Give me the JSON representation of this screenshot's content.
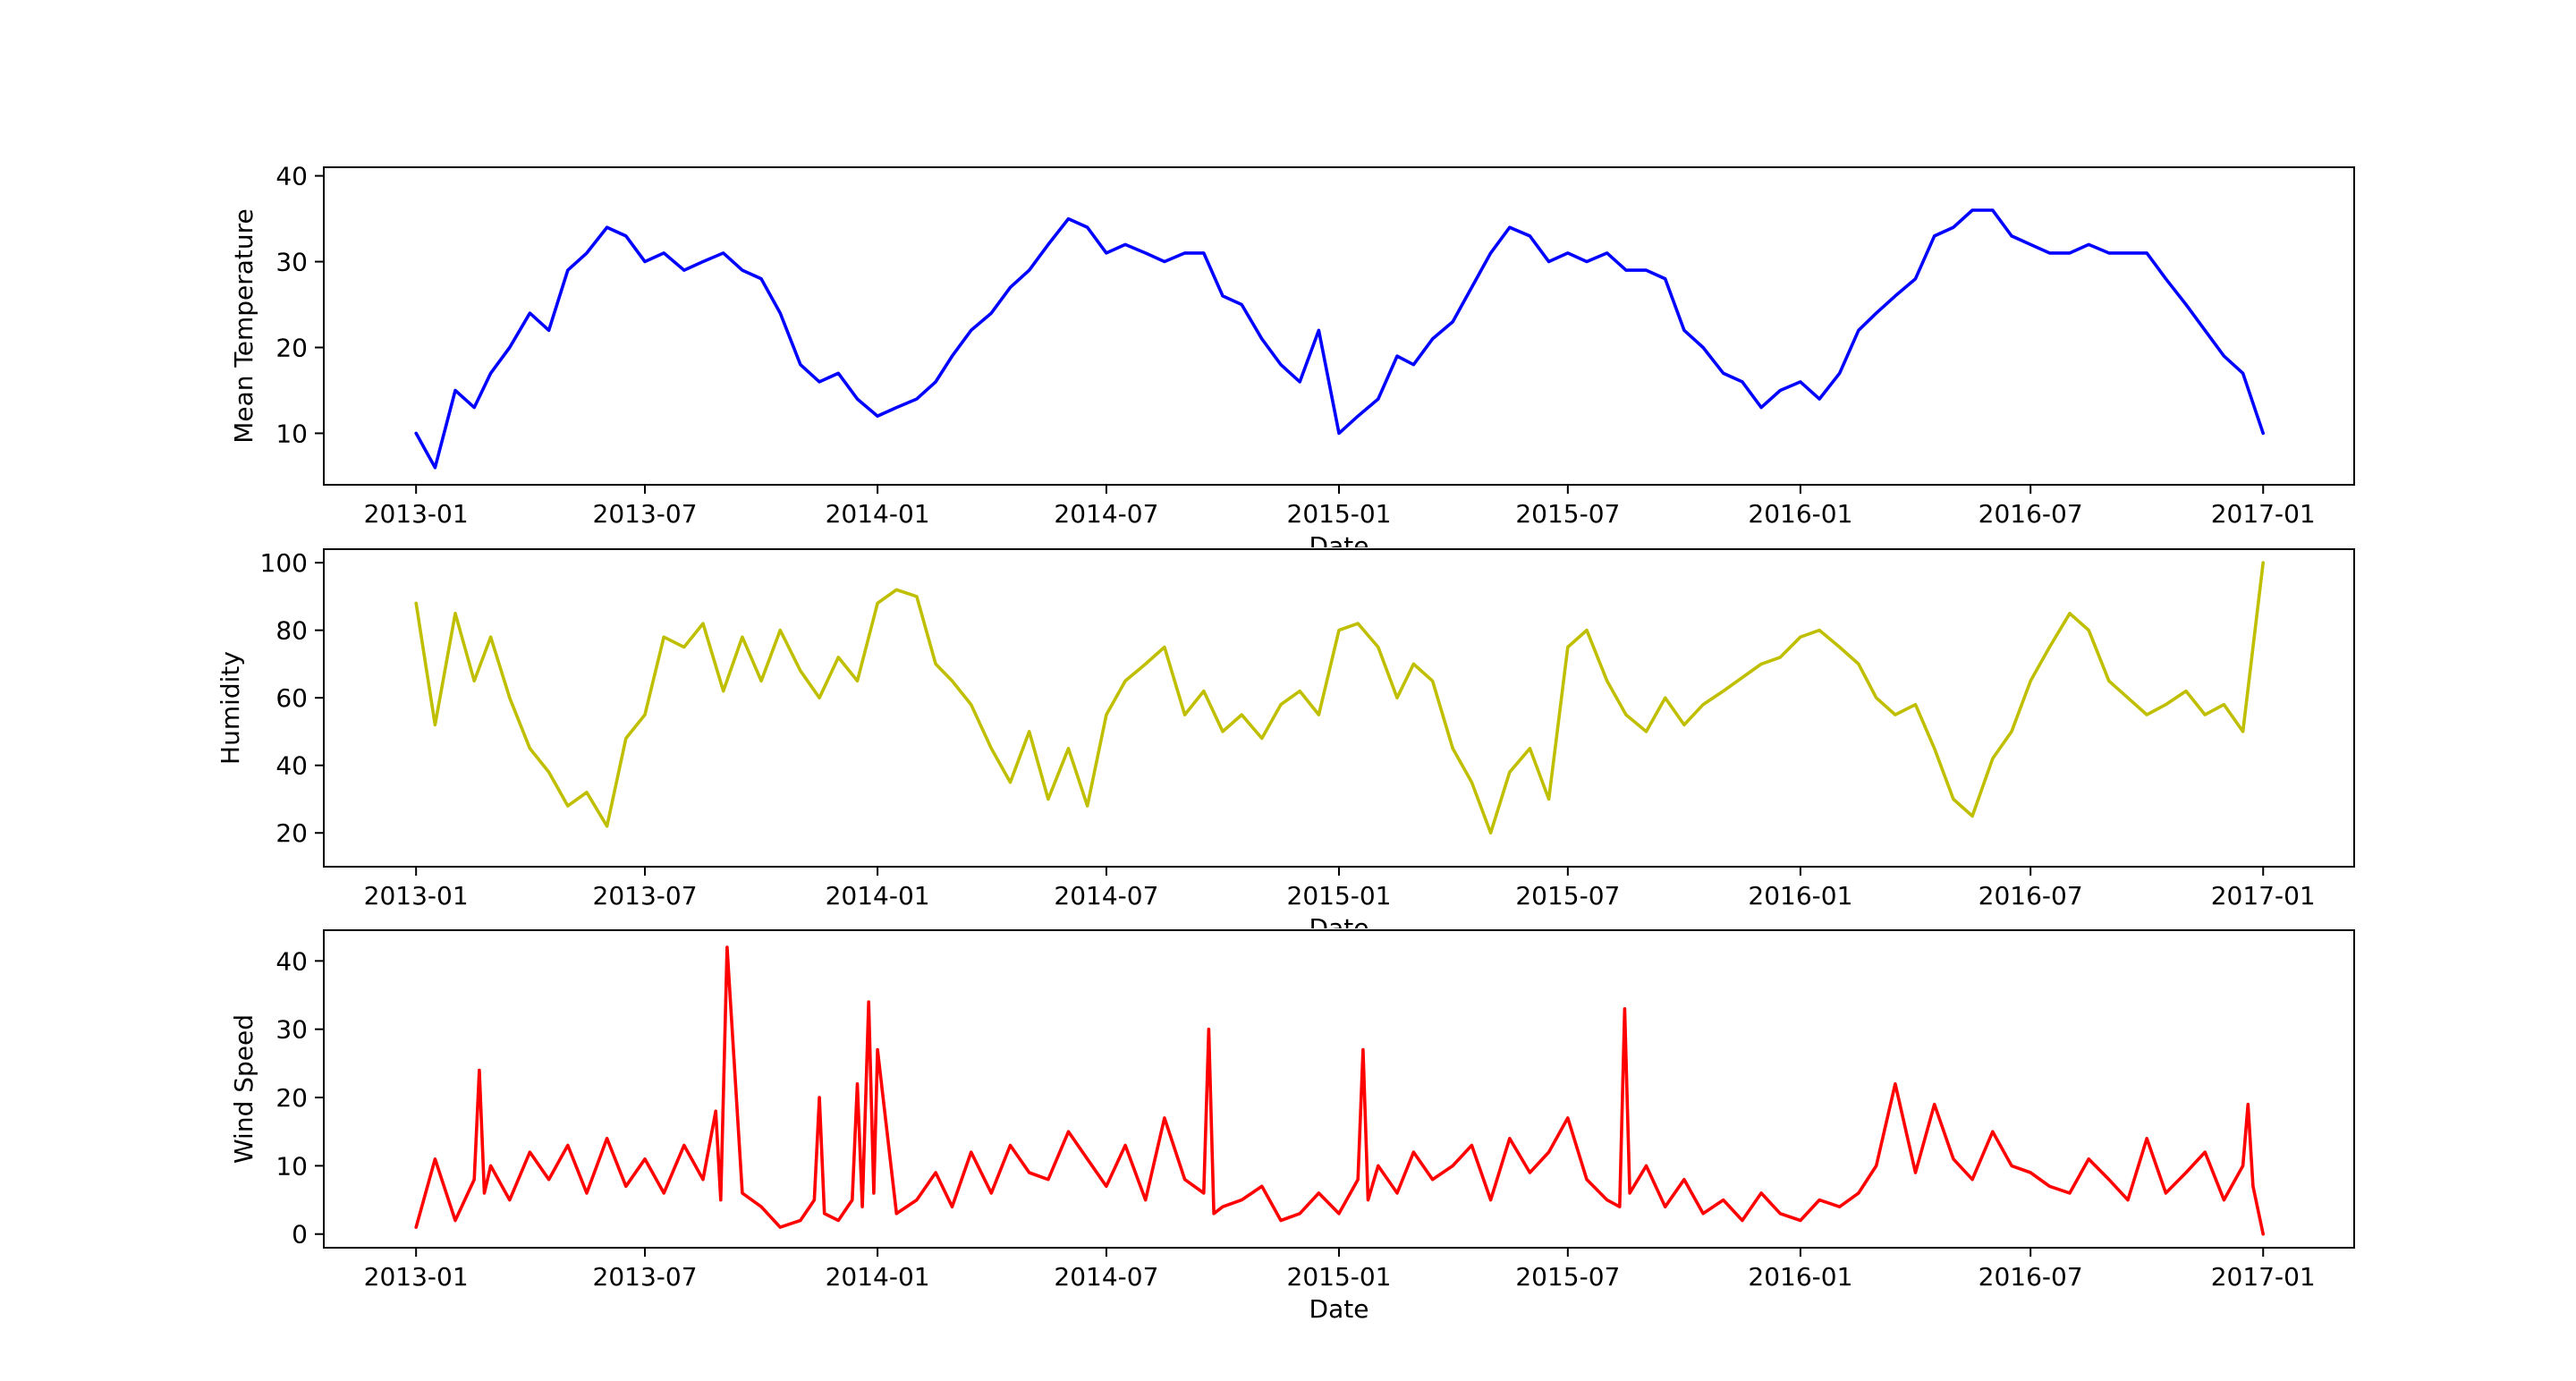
{
  "chart_data": [
    {
      "type": "line",
      "xlabel": "Date",
      "ylabel": "Mean Temperature",
      "xlim": [
        "2012-10-20",
        "2017-03-14"
      ],
      "ylim": [
        4,
        41
      ],
      "xticks": [
        "2013-01",
        "2013-07",
        "2014-01",
        "2014-07",
        "2015-01",
        "2015-07",
        "2016-01",
        "2016-07",
        "2017-01"
      ],
      "yticks": [
        10,
        20,
        30,
        40
      ],
      "color": "#0000ff",
      "series": [
        {
          "x": [
            "2013-01-01",
            "2013-01-16",
            "2013-02-01",
            "2013-02-16",
            "2013-03-01",
            "2013-03-16",
            "2013-04-01",
            "2013-04-16",
            "2013-05-01",
            "2013-05-16",
            "2013-06-01",
            "2013-06-16",
            "2013-07-01",
            "2013-07-16",
            "2013-08-01",
            "2013-08-16",
            "2013-09-01",
            "2013-09-16",
            "2013-10-01",
            "2013-10-16",
            "2013-11-01",
            "2013-11-16",
            "2013-12-01",
            "2013-12-16",
            "2014-01-01",
            "2014-01-16",
            "2014-02-01",
            "2014-02-16",
            "2014-03-01",
            "2014-03-16",
            "2014-04-01",
            "2014-04-16",
            "2014-05-01",
            "2014-05-16",
            "2014-06-01",
            "2014-06-16",
            "2014-07-01",
            "2014-07-16",
            "2014-08-01",
            "2014-08-16",
            "2014-09-01",
            "2014-09-16",
            "2014-10-01",
            "2014-10-16",
            "2014-11-01",
            "2014-11-16",
            "2014-12-01",
            "2014-12-16",
            "2015-01-01",
            "2015-01-16",
            "2015-02-01",
            "2015-02-16",
            "2015-03-01",
            "2015-03-16",
            "2015-04-01",
            "2015-04-16",
            "2015-05-01",
            "2015-05-16",
            "2015-06-01",
            "2015-06-16",
            "2015-07-01",
            "2015-07-16",
            "2015-08-01",
            "2015-08-16",
            "2015-09-01",
            "2015-09-16",
            "2015-10-01",
            "2015-10-16",
            "2015-11-01",
            "2015-11-16",
            "2015-12-01",
            "2015-12-16",
            "2016-01-01",
            "2016-01-16",
            "2016-02-01",
            "2016-02-16",
            "2016-03-01",
            "2016-03-16",
            "2016-04-01",
            "2016-04-16",
            "2016-05-01",
            "2016-05-16",
            "2016-06-01",
            "2016-06-16",
            "2016-07-01",
            "2016-07-16",
            "2016-08-01",
            "2016-08-16",
            "2016-09-01",
            "2016-09-16",
            "2016-10-01",
            "2016-10-16",
            "2016-11-01",
            "2016-11-16",
            "2016-12-01",
            "2016-12-16",
            "2017-01-01"
          ],
          "y": [
            10,
            6,
            15,
            13,
            17,
            20,
            24,
            22,
            29,
            31,
            34,
            33,
            30,
            31,
            29,
            30,
            31,
            29,
            28,
            24,
            18,
            16,
            17,
            14,
            12,
            13,
            14,
            16,
            19,
            22,
            24,
            27,
            29,
            32,
            35,
            34,
            31,
            32,
            31,
            30,
            31,
            31,
            26,
            25,
            21,
            18,
            16,
            22,
            10,
            12,
            14,
            19,
            18,
            21,
            23,
            27,
            31,
            34,
            33,
            30,
            31,
            30,
            31,
            29,
            29,
            28,
            22,
            20,
            17,
            16,
            13,
            15,
            16,
            14,
            17,
            22,
            24,
            26,
            28,
            33,
            34,
            36,
            36,
            33,
            32,
            31,
            31,
            32,
            31,
            31,
            31,
            28,
            25,
            22,
            19,
            17,
            10
          ]
        }
      ]
    },
    {
      "type": "line",
      "xlabel": "Date",
      "ylabel": "Humidity",
      "xlim": [
        "2012-10-20",
        "2017-03-14"
      ],
      "ylim": [
        10,
        104
      ],
      "xticks": [
        "2013-01",
        "2013-07",
        "2014-01",
        "2014-07",
        "2015-01",
        "2015-07",
        "2016-01",
        "2016-07",
        "2017-01"
      ],
      "yticks": [
        20,
        40,
        60,
        80,
        100
      ],
      "color": "#bfbf00",
      "series": [
        {
          "x": [
            "2013-01-01",
            "2013-01-16",
            "2013-02-01",
            "2013-02-16",
            "2013-03-01",
            "2013-03-16",
            "2013-04-01",
            "2013-04-16",
            "2013-05-01",
            "2013-05-16",
            "2013-06-01",
            "2013-06-16",
            "2013-07-01",
            "2013-07-16",
            "2013-08-01",
            "2013-08-16",
            "2013-09-01",
            "2013-09-16",
            "2013-10-01",
            "2013-10-16",
            "2013-11-01",
            "2013-11-16",
            "2013-12-01",
            "2013-12-16",
            "2014-01-01",
            "2014-01-16",
            "2014-02-01",
            "2014-02-16",
            "2014-03-01",
            "2014-03-16",
            "2014-04-01",
            "2014-04-16",
            "2014-05-01",
            "2014-05-16",
            "2014-06-01",
            "2014-06-16",
            "2014-07-01",
            "2014-07-16",
            "2014-08-01",
            "2014-08-16",
            "2014-09-01",
            "2014-09-16",
            "2014-10-01",
            "2014-10-16",
            "2014-11-01",
            "2014-11-16",
            "2014-12-01",
            "2014-12-16",
            "2015-01-01",
            "2015-01-16",
            "2015-02-01",
            "2015-02-16",
            "2015-03-01",
            "2015-03-16",
            "2015-04-01",
            "2015-04-16",
            "2015-05-01",
            "2015-05-16",
            "2015-06-01",
            "2015-06-16",
            "2015-07-01",
            "2015-07-16",
            "2015-08-01",
            "2015-08-16",
            "2015-09-01",
            "2015-09-16",
            "2015-10-01",
            "2015-10-16",
            "2015-11-01",
            "2015-11-16",
            "2015-12-01",
            "2015-12-16",
            "2016-01-01",
            "2016-01-16",
            "2016-02-01",
            "2016-02-16",
            "2016-03-01",
            "2016-03-16",
            "2016-04-01",
            "2016-04-16",
            "2016-05-01",
            "2016-05-16",
            "2016-06-01",
            "2016-06-16",
            "2016-07-01",
            "2016-07-16",
            "2016-08-01",
            "2016-08-16",
            "2016-09-01",
            "2016-09-16",
            "2016-10-01",
            "2016-10-16",
            "2016-11-01",
            "2016-11-16",
            "2016-12-01",
            "2016-12-16",
            "2017-01-01"
          ],
          "y": [
            88,
            52,
            85,
            65,
            78,
            60,
            45,
            38,
            28,
            32,
            22,
            48,
            55,
            78,
            75,
            82,
            62,
            78,
            65,
            80,
            68,
            60,
            72,
            65,
            88,
            92,
            90,
            70,
            65,
            58,
            45,
            35,
            50,
            30,
            45,
            28,
            55,
            65,
            70,
            75,
            55,
            62,
            50,
            55,
            48,
            58,
            62,
            55,
            80,
            82,
            75,
            60,
            70,
            65,
            45,
            35,
            20,
            38,
            45,
            30,
            75,
            80,
            65,
            55,
            50,
            60,
            52,
            58,
            62,
            66,
            70,
            72,
            78,
            80,
            75,
            70,
            60,
            55,
            58,
            45,
            30,
            25,
            42,
            50,
            65,
            75,
            85,
            80,
            65,
            60,
            55,
            58,
            62,
            55,
            58,
            50,
            100
          ]
        }
      ]
    },
    {
      "type": "line",
      "xlabel": "Date",
      "ylabel": "Wind Speed",
      "xlim": [
        "2012-10-20",
        "2017-03-14"
      ],
      "ylim": [
        -2,
        44.5
      ],
      "xticks": [
        "2013-01",
        "2013-07",
        "2014-01",
        "2014-07",
        "2015-01",
        "2015-07",
        "2016-01",
        "2016-07",
        "2017-01"
      ],
      "yticks": [
        0,
        10,
        20,
        30,
        40
      ],
      "color": "#ff0000",
      "series": [
        {
          "x": [
            "2013-01-01",
            "2013-01-16",
            "2013-02-01",
            "2013-02-16",
            "2013-02-20",
            "2013-02-24",
            "2013-03-01",
            "2013-03-16",
            "2013-04-01",
            "2013-04-16",
            "2013-05-01",
            "2013-05-16",
            "2013-06-01",
            "2013-06-16",
            "2013-07-01",
            "2013-07-16",
            "2013-08-01",
            "2013-08-16",
            "2013-08-26",
            "2013-08-30",
            "2013-09-04",
            "2013-09-16",
            "2013-10-01",
            "2013-10-16",
            "2013-11-01",
            "2013-11-12",
            "2013-11-16",
            "2013-11-20",
            "2013-12-01",
            "2013-12-12",
            "2013-12-16",
            "2013-12-20",
            "2013-12-25",
            "2013-12-29",
            "2014-01-01",
            "2014-01-16",
            "2014-02-01",
            "2014-02-16",
            "2014-03-01",
            "2014-03-16",
            "2014-04-01",
            "2014-04-16",
            "2014-05-01",
            "2014-05-16",
            "2014-06-01",
            "2014-06-16",
            "2014-07-01",
            "2014-07-16",
            "2014-08-01",
            "2014-08-16",
            "2014-09-01",
            "2014-09-16",
            "2014-09-20",
            "2014-09-24",
            "2014-10-01",
            "2014-10-16",
            "2014-11-01",
            "2014-11-16",
            "2014-12-01",
            "2014-12-16",
            "2015-01-01",
            "2015-01-16",
            "2015-01-20",
            "2015-01-24",
            "2015-02-01",
            "2015-02-16",
            "2015-03-01",
            "2015-03-16",
            "2015-04-01",
            "2015-04-16",
            "2015-05-01",
            "2015-05-16",
            "2015-06-01",
            "2015-06-16",
            "2015-07-01",
            "2015-07-16",
            "2015-08-01",
            "2015-08-11",
            "2015-08-15",
            "2015-08-19",
            "2015-09-01",
            "2015-09-16",
            "2015-10-01",
            "2015-10-16",
            "2015-11-01",
            "2015-11-16",
            "2015-12-01",
            "2015-12-16",
            "2016-01-01",
            "2016-01-16",
            "2016-02-01",
            "2016-02-16",
            "2016-03-01",
            "2016-03-16",
            "2016-04-01",
            "2016-04-16",
            "2016-05-01",
            "2016-05-16",
            "2016-06-01",
            "2016-06-16",
            "2016-07-01",
            "2016-07-16",
            "2016-08-01",
            "2016-08-16",
            "2016-09-01",
            "2016-09-16",
            "2016-10-01",
            "2016-10-16",
            "2016-11-01",
            "2016-11-16",
            "2016-12-01",
            "2016-12-16",
            "2016-12-20",
            "2016-12-24",
            "2017-01-01"
          ],
          "y": [
            1,
            11,
            2,
            8,
            24,
            6,
            10,
            5,
            12,
            8,
            13,
            6,
            14,
            7,
            11,
            6,
            13,
            8,
            18,
            5,
            42,
            6,
            4,
            1,
            2,
            5,
            20,
            3,
            2,
            5,
            22,
            4,
            34,
            6,
            27,
            3,
            5,
            9,
            4,
            12,
            6,
            13,
            9,
            8,
            15,
            11,
            7,
            13,
            5,
            17,
            8,
            6,
            30,
            3,
            4,
            5,
            7,
            2,
            3,
            6,
            3,
            8,
            27,
            5,
            10,
            6,
            12,
            8,
            10,
            13,
            5,
            14,
            9,
            12,
            17,
            8,
            5,
            4,
            33,
            6,
            10,
            4,
            8,
            3,
            5,
            2,
            6,
            3,
            2,
            5,
            4,
            6,
            10,
            22,
            9,
            19,
            11,
            8,
            15,
            10,
            9,
            7,
            6,
            11,
            8,
            5,
            14,
            6,
            9,
            12,
            5,
            10,
            19,
            7,
            0
          ]
        }
      ]
    }
  ]
}
